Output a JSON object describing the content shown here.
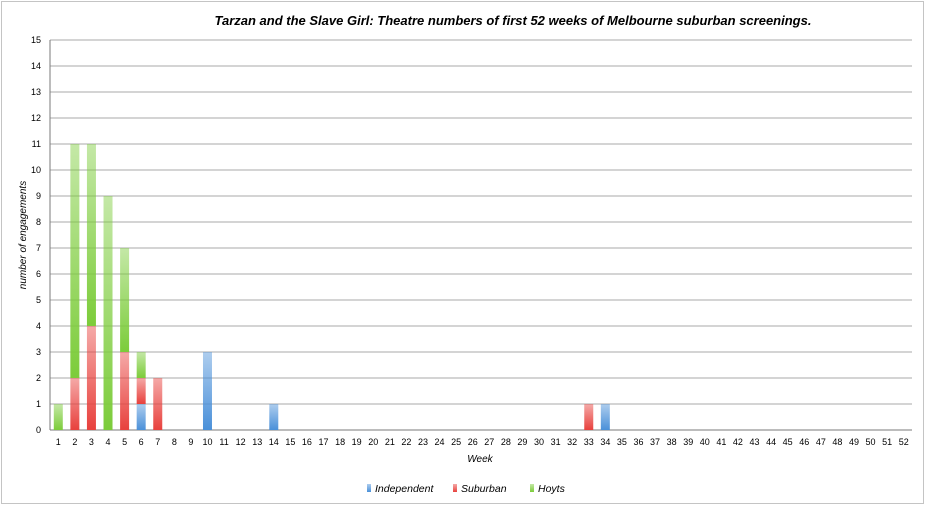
{
  "chart_data": {
    "type": "bar",
    "stacked": true,
    "title": "Tarzan and the Slave Girl: Theatre numbers of first 52 weeks of Melbourne suburban screenings.",
    "xlabel": "Week",
    "ylabel": "number of engagements",
    "ylim": [
      0,
      15
    ],
    "yticks": [
      0,
      1,
      2,
      3,
      4,
      5,
      6,
      7,
      8,
      9,
      10,
      11,
      12,
      13,
      14,
      15
    ],
    "grid": true,
    "legend_position": "bottom",
    "categories": [
      "1",
      "2",
      "3",
      "4",
      "5",
      "6",
      "7",
      "8",
      "9",
      "10",
      "11",
      "12",
      "13",
      "14",
      "15",
      "16",
      "17",
      "18",
      "19",
      "20",
      "21",
      "22",
      "23",
      "24",
      "25",
      "26",
      "27",
      "28",
      "29",
      "30",
      "31",
      "32",
      "33",
      "34",
      "35",
      "36",
      "37",
      "38",
      "39",
      "40",
      "41",
      "42",
      "43",
      "44",
      "45",
      "46",
      "47",
      "48",
      "49",
      "50",
      "51",
      "52"
    ],
    "series": [
      {
        "name": "Independent",
        "color": "#4a90d9",
        "values": [
          0,
          0,
          0,
          0,
          0,
          1,
          0,
          0,
          0,
          3,
          0,
          0,
          0,
          1,
          0,
          0,
          0,
          0,
          0,
          0,
          0,
          0,
          0,
          0,
          0,
          0,
          0,
          0,
          0,
          0,
          0,
          0,
          0,
          1,
          0,
          0,
          0,
          0,
          0,
          0,
          0,
          0,
          0,
          0,
          0,
          0,
          0,
          0,
          0,
          0,
          0,
          0
        ]
      },
      {
        "name": "Suburban",
        "color": "#e8413d",
        "values": [
          0,
          2,
          4,
          0,
          3,
          1,
          2,
          0,
          0,
          0,
          0,
          0,
          0,
          0,
          0,
          0,
          0,
          0,
          0,
          0,
          0,
          0,
          0,
          0,
          0,
          0,
          0,
          0,
          0,
          0,
          0,
          0,
          1,
          0,
          0,
          0,
          0,
          0,
          0,
          0,
          0,
          0,
          0,
          0,
          0,
          0,
          0,
          0,
          0,
          0,
          0,
          0
        ]
      },
      {
        "name": "Hoyts",
        "color": "#7ccc3a",
        "values": [
          1,
          9,
          7,
          9,
          4,
          1,
          0,
          0,
          0,
          0,
          0,
          0,
          0,
          0,
          0,
          0,
          0,
          0,
          0,
          0,
          0,
          0,
          0,
          0,
          0,
          0,
          0,
          0,
          0,
          0,
          0,
          0,
          0,
          0,
          0,
          0,
          0,
          0,
          0,
          0,
          0,
          0,
          0,
          0,
          0,
          0,
          0,
          0,
          0,
          0,
          0,
          0
        ]
      }
    ]
  }
}
